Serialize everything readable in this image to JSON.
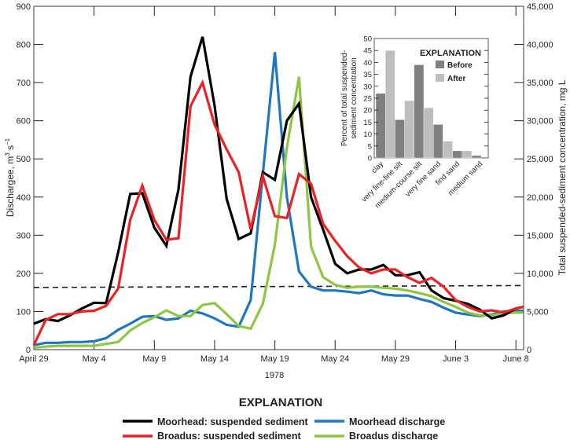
{
  "chart_data": [
    {
      "type": "line",
      "title": "",
      "xlabel": "1978",
      "ylabel": "Discharge, m³ s⁻¹",
      "ylabel_main": "Dischargee, m",
      "ylabel_sup": "3",
      "ylabel_mid": " s",
      "ylabel_sup2": "−1",
      "y2label": "Total suspended-sediment concentration, mg L",
      "ylim": [
        0,
        900
      ],
      "y2lim": [
        0,
        45000
      ],
      "yticks": [
        0,
        100,
        200,
        300,
        400,
        500,
        600,
        700,
        800,
        900
      ],
      "y2ticks": [
        "0",
        "5,000",
        "10,000",
        "15,000",
        "20,000",
        "25,000",
        "30,000",
        "35,000",
        "40,000",
        "45,000"
      ],
      "xlim_days": [
        0,
        40.6
      ],
      "xticks": [
        {
          "day": 0,
          "label": "April 29"
        },
        {
          "day": 5,
          "label": "May 4"
        },
        {
          "day": 10,
          "label": "May 9"
        },
        {
          "day": 15,
          "label": "May 14"
        },
        {
          "day": 20,
          "label": "May 19"
        },
        {
          "day": 25,
          "label": "May 24"
        },
        {
          "day": 30,
          "label": "May 29"
        },
        {
          "day": 35,
          "label": "June 3"
        },
        {
          "day": 40,
          "label": "June 8"
        }
      ],
      "grid": false,
      "reference_line": {
        "style": "dashed",
        "color": "#231f20",
        "start_value": 163,
        "end_value": 168
      },
      "series": [
        {
          "name": "Moorhead: suspended sediment",
          "color": "#000000",
          "axis": "right-scaled-to-left",
          "values": [
            68,
            80,
            75,
            90,
            108,
            123,
            122,
            255,
            408,
            410,
            320,
            272,
            420,
            715,
            820,
            640,
            395,
            290,
            305,
            465,
            445,
            600,
            645,
            400,
            315,
            225,
            200,
            210,
            210,
            222,
            195,
            195,
            203,
            155,
            135,
            128,
            120,
            105,
            82,
            90,
            108,
            112
          ]
        },
        {
          "name": "Broadus: suspended sediment",
          "color": "#ee2024",
          "axis": "right-scaled-to-left",
          "values": [
            12,
            78,
            93,
            93,
            100,
            102,
            115,
            160,
            340,
            430,
            340,
            288,
            292,
            638,
            700,
            590,
            525,
            465,
            315,
            455,
            350,
            345,
            460,
            435,
            330,
            285,
            245,
            215,
            200,
            210,
            210,
            190,
            175,
            188,
            165,
            130,
            112,
            100,
            103,
            97,
            108,
            112
          ]
        },
        {
          "name": "Moorhead discharge",
          "color": "#1f77c0",
          "axis": "left",
          "values": [
            12,
            18,
            18,
            20,
            20,
            22,
            30,
            52,
            68,
            86,
            88,
            78,
            82,
            102,
            95,
            82,
            65,
            60,
            130,
            460,
            780,
            400,
            205,
            165,
            155,
            155,
            152,
            148,
            155,
            145,
            142,
            142,
            133,
            125,
            110,
            97,
            92,
            88,
            92,
            100,
            102,
            102
          ]
        },
        {
          "name": "Broadus discharge",
          "color": "#8dc63f",
          "axis": "left",
          "values": [
            5,
            8,
            10,
            10,
            10,
            10,
            15,
            20,
            50,
            70,
            85,
            103,
            88,
            88,
            117,
            122,
            93,
            62,
            55,
            120,
            275,
            530,
            715,
            270,
            190,
            170,
            162,
            165,
            165,
            162,
            160,
            155,
            148,
            140,
            125,
            112,
            97,
            90,
            90,
            95,
            97,
            97
          ]
        }
      ],
      "legend": {
        "title": "EXPLANATION",
        "placement": "bottom-center",
        "entries": [
          {
            "label": "Moorhead: suspended sediment",
            "color": "#000000"
          },
          {
            "label": "Moorhead discharge",
            "color": "#1f77c0"
          },
          {
            "label": "Broadus: suspended sediment",
            "color": "#ee2024"
          },
          {
            "label": "Broadus discharge",
            "color": "#8dc63f"
          }
        ]
      }
    },
    {
      "type": "bar",
      "title": "",
      "placement": "inset-top-right",
      "ylabel_line1": "Percent of total suspended-",
      "ylabel_line2": "sediment concentration",
      "ylim": [
        0,
        50
      ],
      "yticks": [
        0,
        5,
        10,
        15,
        20,
        25,
        30,
        35,
        40,
        45,
        50
      ],
      "categories": [
        "clay",
        "very fine-fine silt",
        "medium-course silt",
        "very fine sand",
        "find sand",
        "medium sand"
      ],
      "series": [
        {
          "name": "Before",
          "color": "#808083",
          "values": [
            27,
            16,
            39,
            14,
            3,
            1
          ]
        },
        {
          "name": "After",
          "color": "#bcbec0",
          "values": [
            45,
            24,
            21,
            7,
            3,
            0
          ]
        }
      ],
      "legend": {
        "title": "EXPLANATION",
        "placement": "top-right",
        "entries": [
          {
            "label": "Before",
            "color": "#808083"
          },
          {
            "label": "After",
            "color": "#bcbec0"
          }
        ]
      }
    }
  ]
}
